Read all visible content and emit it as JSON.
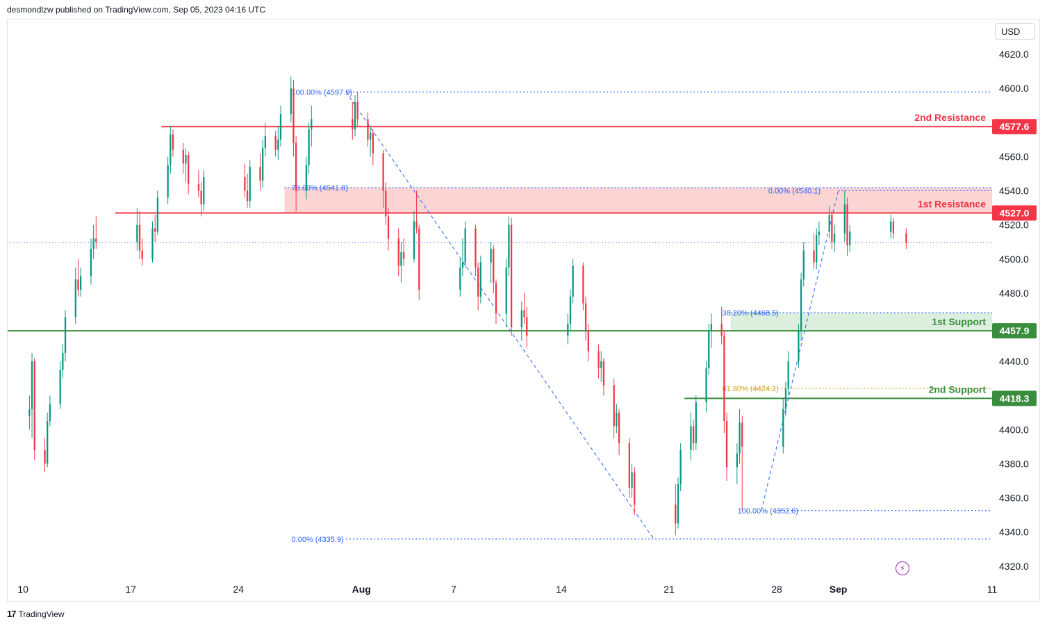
{
  "header": {
    "publisher_line": "desmondlzw published on TradingView.com, Sep 05, 2023 04:16 UTC"
  },
  "footer": {
    "brand": "TradingView",
    "logo_glyph": "17"
  },
  "price_axis": {
    "currency": "USD"
  },
  "colors": {
    "up": "#089981",
    "down": "#f23645",
    "resistance": "#f23645",
    "support": "#388e3c",
    "fib": "#2962ff",
    "fib_gold": "#d4a017",
    "resistance_zone": "#fcd4d4",
    "support_zone": "#dcefdf"
  },
  "icons": {
    "bolt": "lightning-bolt-icon"
  },
  "chart_data": {
    "type": "candlestick",
    "y_ticks": [
      4320,
      4340,
      4360,
      4380,
      4400,
      4420,
      4440,
      4460,
      4480,
      4500,
      4520,
      4540,
      4560,
      4580,
      4600,
      4620
    ],
    "y_tick_labels": [
      "4320.0",
      "4340.0",
      "4360.0",
      "4380.0",
      "4400.0",
      "4420.0",
      "4440.0",
      "4460.0",
      "4480.0",
      "4500.0",
      "4520.0",
      "4540.0",
      "4560.0",
      "4580.0",
      "4600.0",
      "4620.0"
    ],
    "ylim": [
      4313,
      4640
    ],
    "x_ticks": [
      {
        "label": "10",
        "date": "2023-07-10",
        "bold": false
      },
      {
        "label": "17",
        "date": "2023-07-17",
        "bold": false
      },
      {
        "label": "24",
        "date": "2023-07-24",
        "bold": false
      },
      {
        "label": "Aug",
        "date": "2023-08-01",
        "bold": true
      },
      {
        "label": "7",
        "date": "2023-08-07",
        "bold": false
      },
      {
        "label": "14",
        "date": "2023-08-14",
        "bold": false
      },
      {
        "label": "21",
        "date": "2023-08-21",
        "bold": false
      },
      {
        "label": "28",
        "date": "2023-08-28",
        "bold": false
      },
      {
        "label": "Sep",
        "date": "2023-09-01",
        "bold": true
      },
      {
        "label": "11",
        "date": "2023-09-11",
        "bold": false
      }
    ],
    "xlim": [
      "2023-07-09",
      "2023-09-11"
    ],
    "levels": [
      {
        "name": "2nd Resistance",
        "price": 4577.6,
        "label": "4577.6",
        "kind": "resistance",
        "from": "2023-07-19"
      },
      {
        "name": "1st Resistance",
        "price": 4527.0,
        "label": "4527.0",
        "kind": "resistance",
        "from": "2023-07-16"
      },
      {
        "name": "1st Support",
        "price": 4457.9,
        "label": "4457.9",
        "kind": "support",
        "from": "2023-07-09"
      },
      {
        "name": "2nd Support",
        "price": 4418.3,
        "label": "4418.3",
        "kind": "support",
        "from": "2023-08-22"
      }
    ],
    "zones": [
      {
        "kind": "resistance",
        "from": "2023-07-27",
        "low": 4527.0,
        "high": 4541.8
      },
      {
        "kind": "support",
        "from": "2023-08-25",
        "low": 4457.9,
        "high": 4468.5
      }
    ],
    "fib_lines": [
      {
        "text": "100.00% (4597.9)",
        "price": 4597.9,
        "from": "2023-07-31",
        "label_at": "2023-07-27",
        "color": "fib"
      },
      {
        "text": "78.60% (4541.8)",
        "price": 4541.8,
        "from": "2023-07-27",
        "label_at": "2023-07-27",
        "color": "fib"
      },
      {
        "text": "0.00% (4540.1)",
        "price": 4540.1,
        "from": "2023-09-01",
        "label_at": "2023-08-27",
        "color": "fib"
      },
      {
        "text": "38.20% (4468.5)",
        "price": 4468.5,
        "from": "2023-08-25",
        "label_at": "2023-08-24",
        "color": "fib"
      },
      {
        "text": "61.80% (4424.2)",
        "price": 4424.2,
        "from": "2023-08-26",
        "label_at": "2023-08-24",
        "color": "fib_gold"
      },
      {
        "text": "100.00% (4352.6)",
        "price": 4352.6,
        "from": "2023-08-28",
        "label_at": "2023-08-25",
        "color": "fib"
      },
      {
        "text": "0.00% (4335.9)",
        "price": 4335.9,
        "from": "2023-07-31",
        "label_at": "2023-07-27",
        "color": "fib"
      }
    ],
    "trend_lines": [
      {
        "from": [
          "2023-07-31",
          4597.9
        ],
        "to": [
          "2023-08-20",
          4335.9
        ]
      },
      {
        "from": [
          "2023-08-27",
          4352.6
        ],
        "to": [
          "2023-09-01",
          4540.1
        ]
      }
    ],
    "last_price": 4509.5,
    "candle_hours": 4,
    "candles": [
      {
        "d": "2023-07-10",
        "o": 4408,
        "h": 4420,
        "l": 4400,
        "c": 4412
      },
      {
        "d": "2023-07-10",
        "o": 4412,
        "h": 4445,
        "l": 4395,
        "c": 4440
      },
      {
        "d": "2023-07-10",
        "o": 4440,
        "h": 4442,
        "l": 4382,
        "c": 4388
      },
      {
        "d": "2023-07-11",
        "o": 4388,
        "h": 4395,
        "l": 4375,
        "c": 4380
      },
      {
        "d": "2023-07-11",
        "o": 4380,
        "h": 4410,
        "l": 4378,
        "c": 4405
      },
      {
        "d": "2023-07-11",
        "o": 4405,
        "h": 4420,
        "l": 4402,
        "c": 4415
      },
      {
        "d": "2023-07-12",
        "o": 4415,
        "h": 4440,
        "l": 4412,
        "c": 4435
      },
      {
        "d": "2023-07-12",
        "o": 4435,
        "h": 4450,
        "l": 4430,
        "c": 4445
      },
      {
        "d": "2023-07-12",
        "o": 4445,
        "h": 4470,
        "l": 4440,
        "c": 4466
      },
      {
        "d": "2023-07-13",
        "o": 4466,
        "h": 4495,
        "l": 4462,
        "c": 4488
      },
      {
        "d": "2023-07-13",
        "o": 4488,
        "h": 4500,
        "l": 4478,
        "c": 4482
      },
      {
        "d": "2023-07-13",
        "o": 4482,
        "h": 4495,
        "l": 4478,
        "c": 4490
      },
      {
        "d": "2023-07-14",
        "o": 4490,
        "h": 4512,
        "l": 4485,
        "c": 4506
      },
      {
        "d": "2023-07-14",
        "o": 4506,
        "h": 4520,
        "l": 4500,
        "c": 4512
      },
      {
        "d": "2023-07-14",
        "o": 4512,
        "h": 4525,
        "l": 4506,
        "c": 4510
      },
      {
        "d": "2023-07-17",
        "o": 4510,
        "h": 4530,
        "l": 4505,
        "c": 4520
      },
      {
        "d": "2023-07-17",
        "o": 4520,
        "h": 4528,
        "l": 4500,
        "c": 4505
      },
      {
        "d": "2023-07-17",
        "o": 4505,
        "h": 4512,
        "l": 4496,
        "c": 4500
      },
      {
        "d": "2023-07-18",
        "o": 4500,
        "h": 4522,
        "l": 4498,
        "c": 4518
      },
      {
        "d": "2023-07-18",
        "o": 4518,
        "h": 4526,
        "l": 4510,
        "c": 4516
      },
      {
        "d": "2023-07-18",
        "o": 4516,
        "h": 4540,
        "l": 4514,
        "c": 4536
      },
      {
        "d": "2023-07-19",
        "o": 4536,
        "h": 4560,
        "l": 4532,
        "c": 4555
      },
      {
        "d": "2023-07-19",
        "o": 4555,
        "h": 4578,
        "l": 4550,
        "c": 4573
      },
      {
        "d": "2023-07-19",
        "o": 4573,
        "h": 4576,
        "l": 4560,
        "c": 4564
      },
      {
        "d": "2023-07-20",
        "o": 4564,
        "h": 4568,
        "l": 4550,
        "c": 4556
      },
      {
        "d": "2023-07-20",
        "o": 4556,
        "h": 4565,
        "l": 4545,
        "c": 4561
      },
      {
        "d": "2023-07-20",
        "o": 4561,
        "h": 4563,
        "l": 4538,
        "c": 4544
      },
      {
        "d": "2023-07-21",
        "o": 4544,
        "h": 4552,
        "l": 4536,
        "c": 4540
      },
      {
        "d": "2023-07-21",
        "o": 4540,
        "h": 4545,
        "l": 4525,
        "c": 4532
      },
      {
        "d": "2023-07-21",
        "o": 4532,
        "h": 4552,
        "l": 4528,
        "c": 4548
      },
      {
        "d": "2023-07-24",
        "o": 4548,
        "h": 4556,
        "l": 4536,
        "c": 4540
      },
      {
        "d": "2023-07-24",
        "o": 4540,
        "h": 4550,
        "l": 4530,
        "c": 4534
      },
      {
        "d": "2023-07-24",
        "o": 4534,
        "h": 4558,
        "l": 4530,
        "c": 4554
      },
      {
        "d": "2023-07-25",
        "o": 4554,
        "h": 4562,
        "l": 4540,
        "c": 4546
      },
      {
        "d": "2023-07-25",
        "o": 4546,
        "h": 4570,
        "l": 4542,
        "c": 4565
      },
      {
        "d": "2023-07-25",
        "o": 4565,
        "h": 4580,
        "l": 4560,
        "c": 4572
      },
      {
        "d": "2023-07-26",
        "o": 4572,
        "h": 4575,
        "l": 4560,
        "c": 4564
      },
      {
        "d": "2023-07-26",
        "o": 4564,
        "h": 4578,
        "l": 4558,
        "c": 4570
      },
      {
        "d": "2023-07-26",
        "o": 4570,
        "h": 4590,
        "l": 4566,
        "c": 4585
      },
      {
        "d": "2023-07-27",
        "o": 4585,
        "h": 4607,
        "l": 4580,
        "c": 4600
      },
      {
        "d": "2023-07-27",
        "o": 4600,
        "h": 4605,
        "l": 4560,
        "c": 4568
      },
      {
        "d": "2023-07-27",
        "o": 4568,
        "h": 4572,
        "l": 4528,
        "c": 4540
      },
      {
        "d": "2023-07-28",
        "o": 4540,
        "h": 4560,
        "l": 4535,
        "c": 4555
      },
      {
        "d": "2023-07-28",
        "o": 4555,
        "h": 4580,
        "l": 4550,
        "c": 4576
      },
      {
        "d": "2023-07-28",
        "o": 4576,
        "h": 4590,
        "l": 4566,
        "c": 4582
      },
      {
        "d": "2023-07-31",
        "o": 4582,
        "h": 4592,
        "l": 4570,
        "c": 4576
      },
      {
        "d": "2023-07-31",
        "o": 4576,
        "h": 4596,
        "l": 4572,
        "c": 4592
      },
      {
        "d": "2023-07-31",
        "o": 4592,
        "h": 4597.9,
        "l": 4578,
        "c": 4582
      },
      {
        "d": "2023-08-01",
        "o": 4582,
        "h": 4586,
        "l": 4566,
        "c": 4570
      },
      {
        "d": "2023-08-01",
        "o": 4570,
        "h": 4578,
        "l": 4560,
        "c": 4574
      },
      {
        "d": "2023-08-01",
        "o": 4574,
        "h": 4576,
        "l": 4555,
        "c": 4562
      },
      {
        "d": "2023-08-02",
        "o": 4562,
        "h": 4564,
        "l": 4530,
        "c": 4540
      },
      {
        "d": "2023-08-02",
        "o": 4540,
        "h": 4545,
        "l": 4520,
        "c": 4525
      },
      {
        "d": "2023-08-02",
        "o": 4525,
        "h": 4530,
        "l": 4505,
        "c": 4512
      },
      {
        "d": "2023-08-03",
        "o": 4512,
        "h": 4518,
        "l": 4490,
        "c": 4496
      },
      {
        "d": "2023-08-03",
        "o": 4496,
        "h": 4510,
        "l": 4486,
        "c": 4504
      },
      {
        "d": "2023-08-03",
        "o": 4504,
        "h": 4512,
        "l": 4496,
        "c": 4500
      },
      {
        "d": "2023-08-04",
        "o": 4500,
        "h": 4528,
        "l": 4498,
        "c": 4522
      },
      {
        "d": "2023-08-04",
        "o": 4522,
        "h": 4540,
        "l": 4515,
        "c": 4518
      },
      {
        "d": "2023-08-04",
        "o": 4518,
        "h": 4520,
        "l": 4476,
        "c": 4482
      },
      {
        "d": "2023-08-07",
        "o": 4482,
        "h": 4500,
        "l": 4478,
        "c": 4495
      },
      {
        "d": "2023-08-07",
        "o": 4495,
        "h": 4512,
        "l": 4490,
        "c": 4498
      },
      {
        "d": "2023-08-07",
        "o": 4498,
        "h": 4522,
        "l": 4495,
        "c": 4518
      },
      {
        "d": "2023-08-08",
        "o": 4518,
        "h": 4520,
        "l": 4490,
        "c": 4495
      },
      {
        "d": "2023-08-08",
        "o": 4495,
        "h": 4498,
        "l": 4470,
        "c": 4478
      },
      {
        "d": "2023-08-08",
        "o": 4478,
        "h": 4502,
        "l": 4474,
        "c": 4498
      },
      {
        "d": "2023-08-09",
        "o": 4498,
        "h": 4510,
        "l": 4486,
        "c": 4506
      },
      {
        "d": "2023-08-09",
        "o": 4506,
        "h": 4508,
        "l": 4480,
        "c": 4486
      },
      {
        "d": "2023-08-09",
        "o": 4486,
        "h": 4488,
        "l": 4462,
        "c": 4468
      },
      {
        "d": "2023-08-10",
        "o": 4468,
        "h": 4500,
        "l": 4460,
        "c": 4495
      },
      {
        "d": "2023-08-10",
        "o": 4495,
        "h": 4525,
        "l": 4490,
        "c": 4520
      },
      {
        "d": "2023-08-10",
        "o": 4520,
        "h": 4524,
        "l": 4455,
        "c": 4460
      },
      {
        "d": "2023-08-11",
        "o": 4460,
        "h": 4475,
        "l": 4452,
        "c": 4470
      },
      {
        "d": "2023-08-11",
        "o": 4470,
        "h": 4480,
        "l": 4462,
        "c": 4466
      },
      {
        "d": "2023-08-11",
        "o": 4466,
        "h": 4472,
        "l": 4448,
        "c": 4455
      },
      {
        "d": "2023-08-14",
        "o": 4455,
        "h": 4468,
        "l": 4450,
        "c": 4462
      },
      {
        "d": "2023-08-14",
        "o": 4462,
        "h": 4482,
        "l": 4458,
        "c": 4478
      },
      {
        "d": "2023-08-14",
        "o": 4478,
        "h": 4500,
        "l": 4474,
        "c": 4496
      },
      {
        "d": "2023-08-15",
        "o": 4496,
        "h": 4498,
        "l": 4470,
        "c": 4474
      },
      {
        "d": "2023-08-15",
        "o": 4474,
        "h": 4478,
        "l": 4452,
        "c": 4458
      },
      {
        "d": "2023-08-15",
        "o": 4458,
        "h": 4462,
        "l": 4440,
        "c": 4446
      },
      {
        "d": "2023-08-16",
        "o": 4446,
        "h": 4450,
        "l": 4430,
        "c": 4436
      },
      {
        "d": "2023-08-16",
        "o": 4436,
        "h": 4446,
        "l": 4428,
        "c": 4440
      },
      {
        "d": "2023-08-16",
        "o": 4440,
        "h": 4442,
        "l": 4420,
        "c": 4426
      },
      {
        "d": "2023-08-17",
        "o": 4426,
        "h": 4430,
        "l": 4395,
        "c": 4402
      },
      {
        "d": "2023-08-17",
        "o": 4402,
        "h": 4415,
        "l": 4398,
        "c": 4410
      },
      {
        "d": "2023-08-17",
        "o": 4410,
        "h": 4412,
        "l": 4385,
        "c": 4392
      },
      {
        "d": "2023-08-18",
        "o": 4392,
        "h": 4395,
        "l": 4360,
        "c": 4366
      },
      {
        "d": "2023-08-18",
        "o": 4366,
        "h": 4380,
        "l": 4360,
        "c": 4375
      },
      {
        "d": "2023-08-18",
        "o": 4375,
        "h": 4378,
        "l": 4350,
        "c": 4356
      },
      {
        "d": "2023-08-21",
        "o": 4356,
        "h": 4368,
        "l": 4338,
        "c": 4345
      },
      {
        "d": "2023-08-21",
        "o": 4345,
        "h": 4372,
        "l": 4342,
        "c": 4368
      },
      {
        "d": "2023-08-21",
        "o": 4368,
        "h": 4392,
        "l": 4364,
        "c": 4388
      },
      {
        "d": "2023-08-22",
        "o": 4388,
        "h": 4410,
        "l": 4382,
        "c": 4402
      },
      {
        "d": "2023-08-22",
        "o": 4402,
        "h": 4406,
        "l": 4388,
        "c": 4392
      },
      {
        "d": "2023-08-22",
        "o": 4392,
        "h": 4420,
        "l": 4388,
        "c": 4416
      },
      {
        "d": "2023-08-23",
        "o": 4416,
        "h": 4440,
        "l": 4410,
        "c": 4436
      },
      {
        "d": "2023-08-23",
        "o": 4436,
        "h": 4462,
        "l": 4432,
        "c": 4458
      },
      {
        "d": "2023-08-23",
        "o": 4458,
        "h": 4468,
        "l": 4448,
        "c": 4462
      },
      {
        "d": "2023-08-24",
        "o": 4462,
        "h": 4472,
        "l": 4450,
        "c": 4455
      },
      {
        "d": "2023-08-24",
        "o": 4455,
        "h": 4458,
        "l": 4398,
        "c": 4405
      },
      {
        "d": "2023-08-24",
        "o": 4405,
        "h": 4410,
        "l": 4370,
        "c": 4378
      },
      {
        "d": "2023-08-25",
        "o": 4378,
        "h": 4392,
        "l": 4368,
        "c": 4386
      },
      {
        "d": "2023-08-25",
        "o": 4386,
        "h": 4412,
        "l": 4380,
        "c": 4404
      },
      {
        "d": "2023-08-25",
        "o": 4404,
        "h": 4408,
        "l": 4352.6,
        "c": 4390
      },
      {
        "d": "2023-08-28",
        "o": 4390,
        "h": 4418,
        "l": 4386,
        "c": 4412
      },
      {
        "d": "2023-08-28",
        "o": 4412,
        "h": 4428,
        "l": 4408,
        "c": 4424
      },
      {
        "d": "2023-08-28",
        "o": 4424,
        "h": 4446,
        "l": 4420,
        "c": 4440
      },
      {
        "d": "2023-08-29",
        "o": 4440,
        "h": 4462,
        "l": 4436,
        "c": 4458
      },
      {
        "d": "2023-08-29",
        "o": 4458,
        "h": 4492,
        "l": 4452,
        "c": 4488
      },
      {
        "d": "2023-08-29",
        "o": 4488,
        "h": 4510,
        "l": 4484,
        "c": 4505
      },
      {
        "d": "2023-08-30",
        "o": 4505,
        "h": 4515,
        "l": 4494,
        "c": 4498
      },
      {
        "d": "2023-08-30",
        "o": 4498,
        "h": 4518,
        "l": 4494,
        "c": 4514
      },
      {
        "d": "2023-08-30",
        "o": 4514,
        "h": 4522,
        "l": 4508,
        "c": 4516
      },
      {
        "d": "2023-08-31",
        "o": 4516,
        "h": 4531,
        "l": 4512,
        "c": 4526
      },
      {
        "d": "2023-08-31",
        "o": 4526,
        "h": 4528,
        "l": 4506,
        "c": 4510
      },
      {
        "d": "2023-08-31",
        "o": 4510,
        "h": 4520,
        "l": 4504,
        "c": 4515
      },
      {
        "d": "2023-09-01",
        "o": 4515,
        "h": 4540.1,
        "l": 4510,
        "c": 4532
      },
      {
        "d": "2023-09-01",
        "o": 4532,
        "h": 4536,
        "l": 4502,
        "c": 4508
      },
      {
        "d": "2023-09-01",
        "o": 4508,
        "h": 4520,
        "l": 4504,
        "c": 4516
      },
      {
        "d": "2023-09-04",
        "o": 4516,
        "h": 4526,
        "l": 4512,
        "c": 4522
      },
      {
        "d": "2023-09-04",
        "o": 4522,
        "h": 4524,
        "l": 4512,
        "c": 4515
      },
      {
        "d": "2023-09-05",
        "o": 4515,
        "h": 4518,
        "l": 4506,
        "c": 4509.5
      }
    ]
  }
}
